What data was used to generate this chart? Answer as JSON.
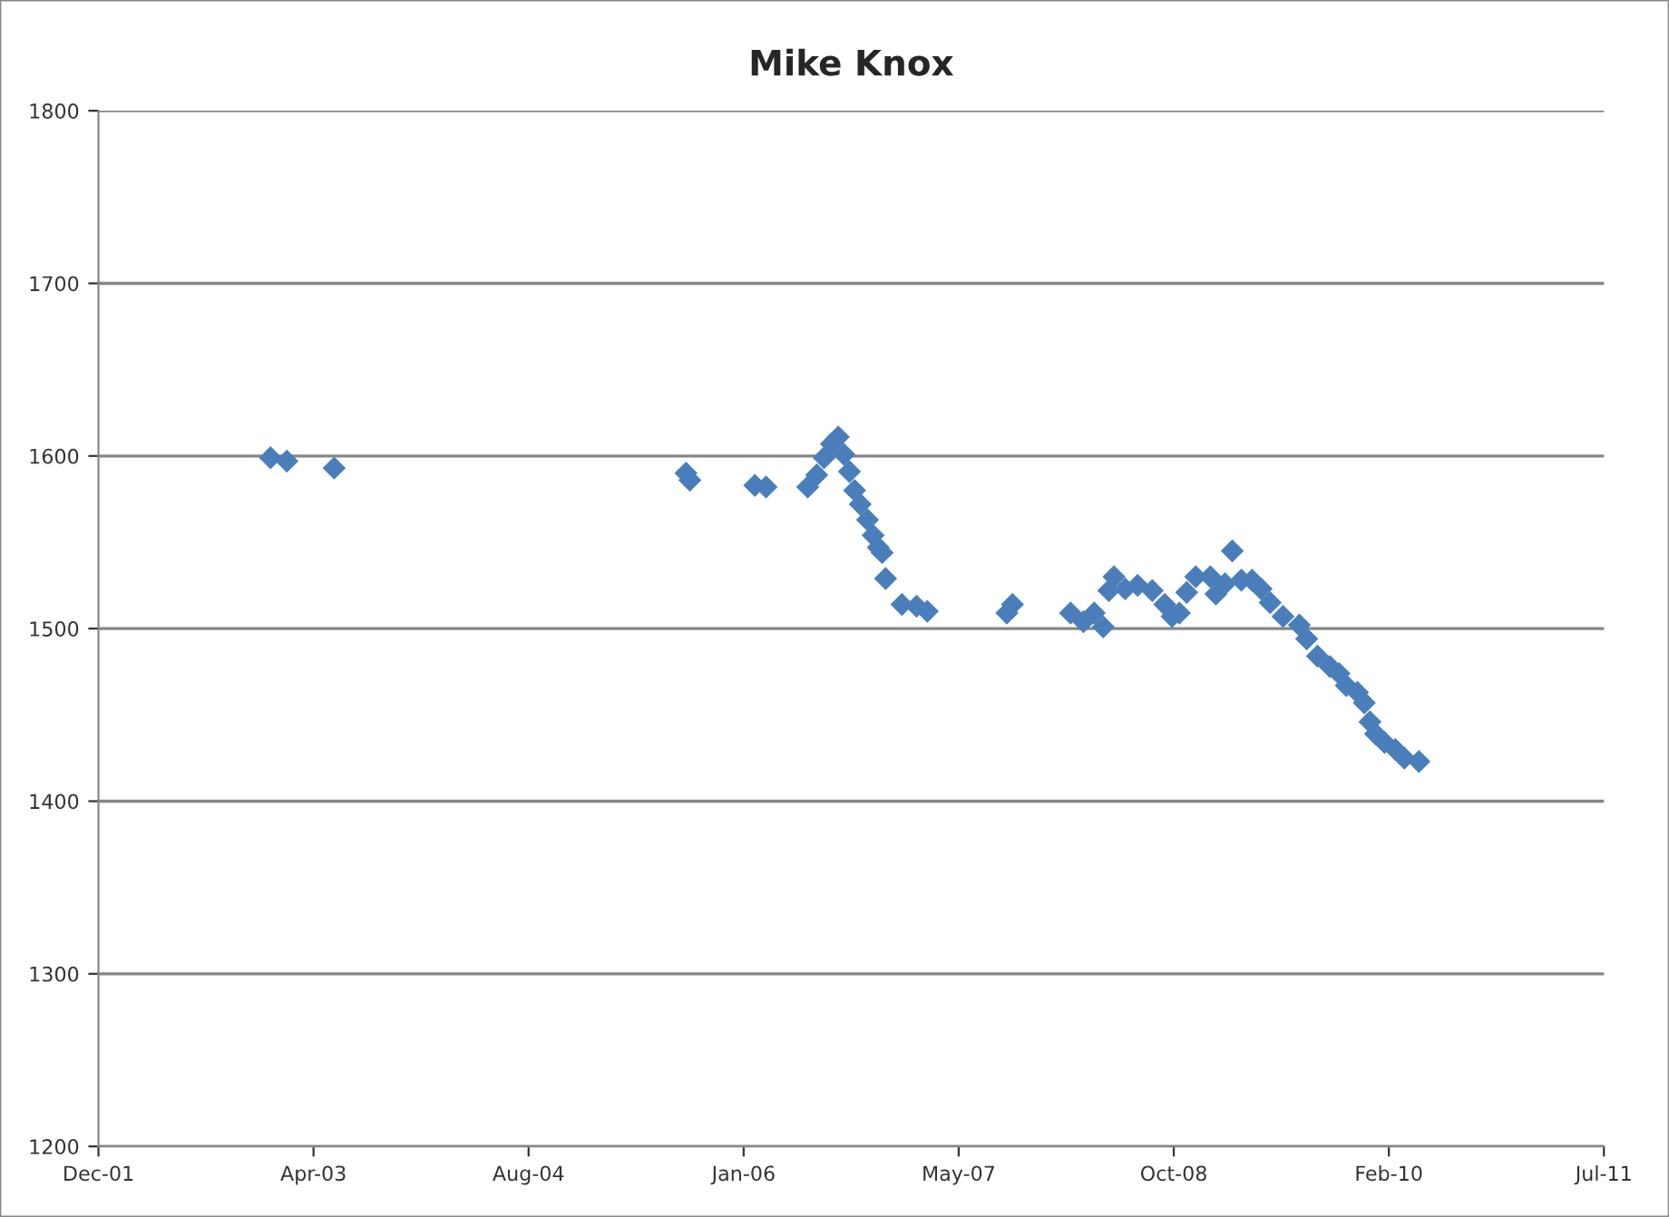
{
  "chart_data": {
    "type": "scatter",
    "title": "Mike Knox",
    "x": [
      "2003-01-05",
      "2003-02-12",
      "2003-06-02",
      "2005-08-28",
      "2005-09-06",
      "2006-02-04",
      "2006-03-02",
      "2006-06-07",
      "2006-06-28",
      "2006-07-15",
      "2006-08-01",
      "2006-08-17",
      "2006-08-30",
      "2006-09-12",
      "2006-09-24",
      "2006-10-07",
      "2006-10-24",
      "2006-11-06",
      "2006-11-18",
      "2006-11-27",
      "2006-12-05",
      "2007-01-12",
      "2007-02-15",
      "2007-03-12",
      "2007-09-13",
      "2007-09-26",
      "2008-02-08",
      "2008-03-09",
      "2008-04-03",
      "2008-04-24",
      "2008-05-07",
      "2008-05-19",
      "2008-06-14",
      "2008-07-13",
      "2008-08-16",
      "2008-09-14",
      "2008-10-01",
      "2008-10-18",
      "2008-11-04",
      "2008-11-25",
      "2008-12-29",
      "2009-01-11",
      "2009-02-01",
      "2009-02-18",
      "2009-03-11",
      "2009-04-05",
      "2009-04-26",
      "2009-05-17",
      "2009-06-16",
      "2009-07-24",
      "2009-08-10",
      "2009-09-04",
      "2009-10-03",
      "2009-10-24",
      "2009-11-10",
      "2009-12-06",
      "2009-12-22",
      "2010-01-04",
      "2010-01-17",
      "2010-02-07",
      "2010-03-04",
      "2010-03-25",
      "2010-04-28"
    ],
    "series": [
      {
        "color": "#4a7ebb",
        "values": [
          1599,
          1597,
          1593,
          1590,
          1586,
          1583,
          1582,
          1582,
          1589,
          1599,
          1607,
          1611,
          1601,
          1591,
          1580,
          1572,
          1563,
          1554,
          1547,
          1544,
          1529,
          1514,
          1513,
          1510,
          1509,
          1514,
          1509,
          1504,
          1509,
          1501,
          1522,
          1530,
          1523,
          1525,
          1522,
          1514,
          1507,
          1509,
          1521,
          1530,
          1530,
          1520,
          1526,
          1545,
          1528,
          1528,
          1523,
          1515,
          1507,
          1502,
          1494,
          1484,
          1478,
          1474,
          1467,
          1463,
          1457,
          1446,
          1439,
          1434,
          1430,
          1425,
          1423
        ]
      }
    ],
    "xlim": [
      "2001-12-01",
      "2011-07-02"
    ],
    "xticks": [
      {
        "value": "2001-12-01",
        "label": "Dec-01"
      },
      {
        "value": "2003-04-15",
        "label": "Apr-03"
      },
      {
        "value": "2004-08-27",
        "label": "Aug-04"
      },
      {
        "value": "2006-01-09",
        "label": "Jan-06"
      },
      {
        "value": "2007-05-24",
        "label": "May-07"
      },
      {
        "value": "2008-10-05",
        "label": "Oct-08"
      },
      {
        "value": "2010-02-17",
        "label": "Feb-10"
      },
      {
        "value": "2011-07-02",
        "label": "Jul-11"
      }
    ],
    "ylim": [
      1200,
      1800
    ],
    "yticks": [
      1200,
      1300,
      1400,
      1500,
      1600,
      1700,
      1800
    ],
    "grid": "y",
    "marker": "diamond",
    "legend": false
  }
}
